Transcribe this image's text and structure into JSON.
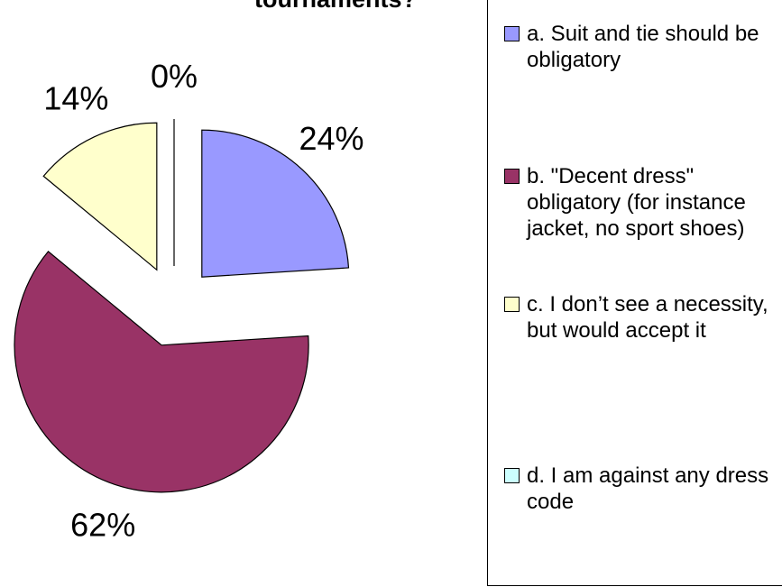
{
  "chart_data": {
    "type": "pie",
    "title": "tournaments?",
    "categories": [
      "a. Suit and tie should be obligatory",
      "b. \"Decent dress\" obligatory (for instance jacket, no sport shoes)",
      "c. I don’t see a necessity, but would accept it",
      "d. I am against any dress code"
    ],
    "values": [
      24,
      62,
      14,
      0
    ],
    "value_labels": [
      "24%",
      "62%",
      "14%",
      "0%"
    ],
    "colors": [
      "#9999ff",
      "#993366",
      "#ffffcc",
      "#ccffff"
    ]
  }
}
